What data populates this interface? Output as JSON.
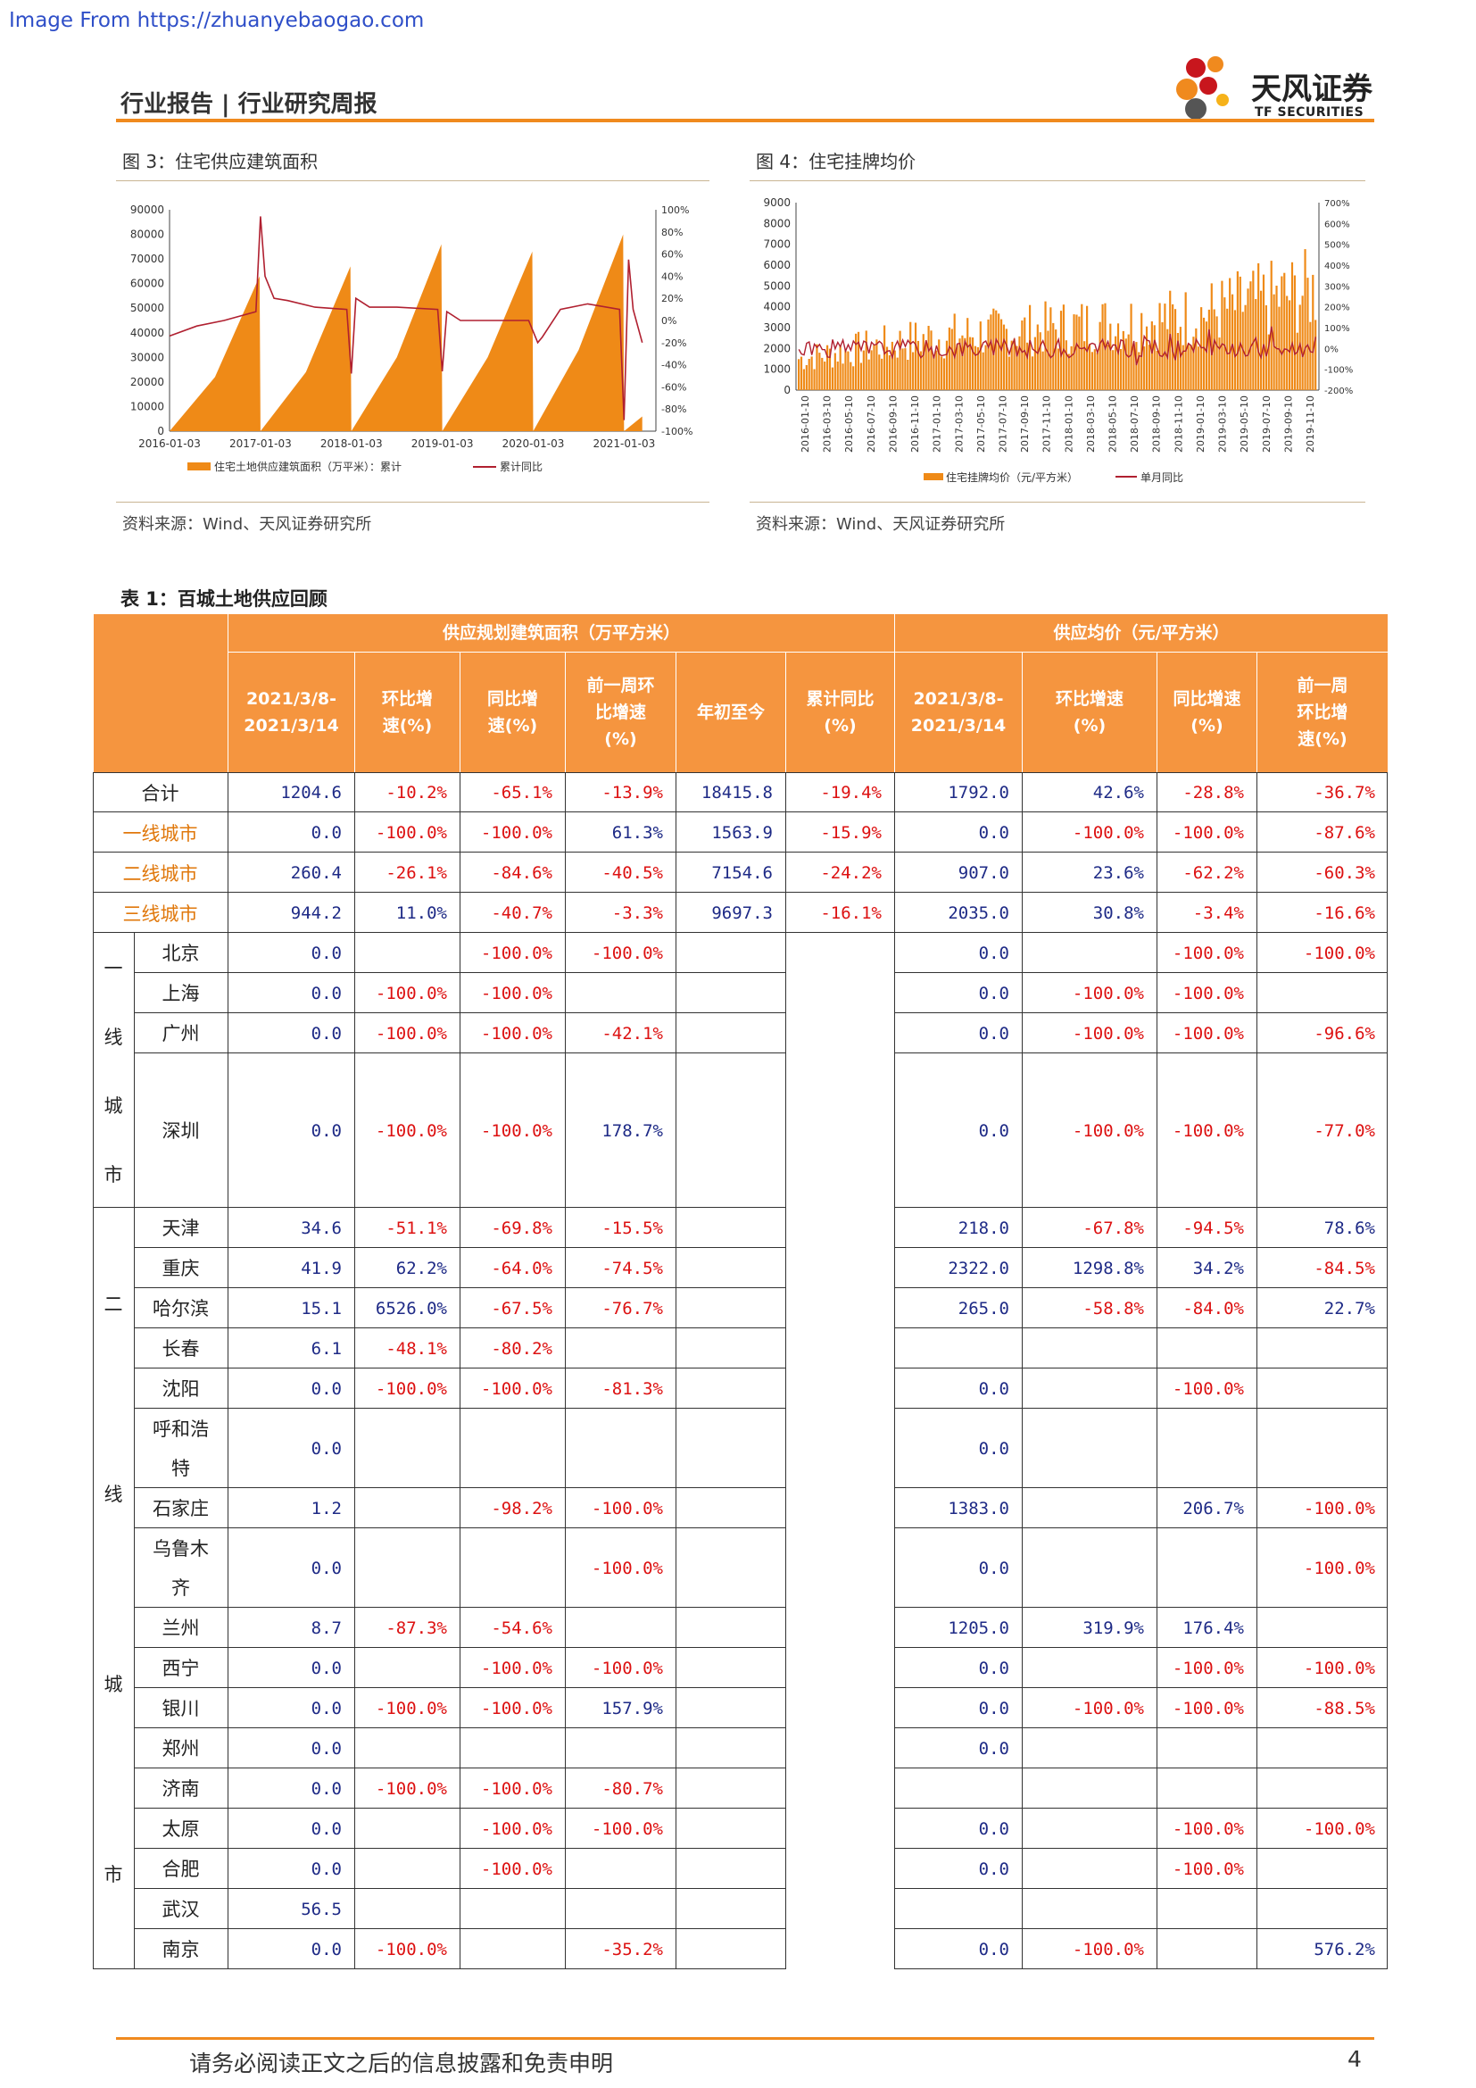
{
  "watermark": "Image From https://zhuanyebaogao.com",
  "header": {
    "title": "行业报告 | 行业研究周报",
    "logo_name": "天风证券",
    "logo_sub": "TF SECURITIES"
  },
  "figure3": {
    "title": "图 3：住宅供应建筑面积",
    "source": "资料来源：Wind、天风证券研究所",
    "chart_data": {
      "type": "area",
      "x_ticks": [
        "2016-01-03",
        "2017-01-03",
        "2018-01-03",
        "2019-01-03",
        "2020-01-03",
        "2021-01-03"
      ],
      "y_left_ticks": [
        "0",
        "10000",
        "20000",
        "30000",
        "40000",
        "50000",
        "60000",
        "70000",
        "80000",
        "90000"
      ],
      "y_right_ticks": [
        "-100%",
        "-80%",
        "-60%",
        "-40%",
        "-20%",
        "0%",
        "20%",
        "40%",
        "60%",
        "80%",
        "100%"
      ],
      "ylim_left": [
        0,
        90000
      ],
      "ylim_right": [
        -100,
        100
      ],
      "series": [
        {
          "name": "住宅土地供应建筑面积（万平米）：累计",
          "kind": "area",
          "color": "#ef8a17",
          "x": [
            2016.0,
            2016.5,
            2016.99,
            2017.0,
            2017.5,
            2017.99,
            2018.0,
            2018.5,
            2018.99,
            2019.0,
            2019.5,
            2019.99,
            2020.0,
            2020.5,
            2020.99,
            2021.0,
            2021.2
          ],
          "values": [
            0,
            22000,
            63000,
            0,
            24000,
            67000,
            0,
            30000,
            76000,
            0,
            30000,
            73000,
            0,
            33000,
            80000,
            0,
            6000
          ]
        },
        {
          "name": "累计同比",
          "kind": "line",
          "color": "#b02030",
          "x": [
            2016.0,
            2016.3,
            2016.6,
            2016.95,
            2017.0,
            2017.05,
            2017.15,
            2017.3,
            2017.6,
            2017.95,
            2018.0,
            2018.05,
            2018.2,
            2018.5,
            2018.95,
            2019.0,
            2019.05,
            2019.2,
            2019.5,
            2019.95,
            2020.0,
            2020.05,
            2020.1,
            2020.3,
            2020.6,
            2020.95,
            2021.0,
            2021.05,
            2021.1,
            2021.2
          ],
          "values": [
            -14,
            -5,
            0,
            8,
            94,
            40,
            20,
            18,
            12,
            10,
            -48,
            20,
            12,
            12,
            10,
            -46,
            8,
            0,
            0,
            0,
            -10,
            -20,
            -15,
            10,
            15,
            10,
            -90,
            55,
            10,
            -20
          ]
        }
      ]
    }
  },
  "figure4": {
    "title": "图 4：住宅挂牌均价",
    "source": "资料来源：Wind、天风证券研究所",
    "chart_data": {
      "type": "bar",
      "x_ticks": [
        "2016-01-10",
        "2016-03-10",
        "2016-05-10",
        "2016-07-10",
        "2016-09-10",
        "2016-11-10",
        "2017-01-10",
        "2017-03-10",
        "2017-05-10",
        "2017-07-10",
        "2017-09-10",
        "2017-11-10",
        "2018-01-10",
        "2018-03-10",
        "2018-05-10",
        "2018-07-10",
        "2018-09-10",
        "2018-11-10",
        "2019-01-10",
        "2019-03-10",
        "2019-05-10",
        "2019-07-10",
        "2019-09-10",
        "2019-11-10"
      ],
      "y_left_ticks": [
        "0",
        "1000",
        "2000",
        "3000",
        "4000",
        "5000",
        "6000",
        "7000",
        "8000",
        "9000"
      ],
      "y_right_ticks": [
        "-200%",
        "-100%",
        "0%",
        "100%",
        "200%",
        "300%",
        "400%",
        "500%",
        "600%",
        "700%"
      ],
      "ylim_left": [
        0,
        9000
      ],
      "ylim_right": [
        -200,
        700
      ],
      "series": [
        {
          "name": "住宅挂牌均价（元/平方米）",
          "kind": "bar",
          "color": "#ef8a17",
          "x_range": [
            2016.0,
            2019.9
          ],
          "values_trend": [
            1500,
            2500,
            3000,
            3500,
            4800
          ]
        },
        {
          "name": "单月同比",
          "kind": "line",
          "color": "#b02030",
          "baseline": 0
        }
      ]
    }
  },
  "table": {
    "title": "表 1：百城土地供应回顾",
    "group1": "供应规划建筑面积（万平方米）",
    "group2": "供应均价（元/平方米）",
    "columns": [
      [
        "2021/3/8-",
        "2021/3/14"
      ],
      [
        "环比增",
        "速(%)"
      ],
      [
        "同比增",
        "速(%)"
      ],
      [
        "前一周环",
        "比增速",
        "(%)"
      ],
      [
        "年初至今"
      ],
      [
        "累计同比",
        "(%)"
      ],
      [
        "2021/3/8-",
        "2021/3/14"
      ],
      [
        "环比增速",
        "(%)"
      ],
      [
        "同比增速",
        "(%)"
      ],
      [
        "前一周",
        "环比增",
        "速(%)"
      ]
    ],
    "summary_rows": [
      {
        "label": "合计",
        "cells": [
          "1204.6",
          "-10.2%",
          "-65.1%",
          "-13.9%",
          "18415.8",
          "-19.4%",
          "1792.0",
          "42.6%",
          "-28.8%",
          "-36.7%"
        ]
      },
      {
        "label": "一线城市",
        "cells": [
          "0.0",
          "-100.0%",
          "-100.0%",
          "61.3%",
          "1563.9",
          "-15.9%",
          "0.0",
          "-100.0%",
          "-100.0%",
          "-87.6%"
        ]
      },
      {
        "label": "二线城市",
        "cells": [
          "260.4",
          "-26.1%",
          "-84.6%",
          "-40.5%",
          "7154.6",
          "-24.2%",
          "907.0",
          "23.6%",
          "-62.2%",
          "-60.3%"
        ]
      },
      {
        "label": "三线城市",
        "cells": [
          "944.2",
          "11.0%",
          "-40.7%",
          "-3.3%",
          "9697.3",
          "-16.1%",
          "2035.0",
          "30.8%",
          "-3.4%",
          "-16.6%"
        ]
      }
    ],
    "groups": [
      {
        "label_chars": [
          "一",
          "线",
          "城",
          "市"
        ],
        "rows": [
          {
            "city": "北京",
            "cells": [
              "0.0",
              "",
              "-100.0%",
              "-100.0%",
              "",
              "",
              "0.0",
              "",
              "-100.0%",
              "-100.0%"
            ]
          },
          {
            "city": "上海",
            "cells": [
              "0.0",
              "-100.0%",
              "-100.0%",
              "",
              "",
              "",
              "0.0",
              "-100.0%",
              "-100.0%",
              ""
            ]
          },
          {
            "city": "广州",
            "cells": [
              "0.0",
              "-100.0%",
              "-100.0%",
              "-42.1%",
              "",
              "",
              "0.0",
              "-100.0%",
              "-100.0%",
              "-96.6%"
            ]
          },
          {
            "city": "深圳",
            "cells": [
              "0.0",
              "-100.0%",
              "-100.0%",
              "178.7%",
              "",
              "",
              "0.0",
              "-100.0%",
              "-100.0%",
              "-77.0%"
            ]
          }
        ]
      },
      {
        "label_chars": [
          "二",
          "线",
          "城",
          "市"
        ],
        "rows": [
          {
            "city": "天津",
            "cells": [
              "34.6",
              "-51.1%",
              "-69.8%",
              "-15.5%",
              "",
              "",
              "218.0",
              "-67.8%",
              "-94.5%",
              "78.6%"
            ]
          },
          {
            "city": "重庆",
            "cells": [
              "41.9",
              "62.2%",
              "-64.0%",
              "-74.5%",
              "",
              "",
              "2322.0",
              "1298.8%",
              "34.2%",
              "-84.5%"
            ]
          },
          {
            "city": "哈尔滨",
            "cells": [
              "15.1",
              "6526.0%",
              "-67.5%",
              "-76.7%",
              "",
              "",
              "265.0",
              "-58.8%",
              "-84.0%",
              "22.7%"
            ]
          },
          {
            "city": "长春",
            "cells": [
              "6.1",
              "-48.1%",
              "-80.2%",
              "",
              "",
              "",
              "",
              "",
              "",
              ""
            ]
          },
          {
            "city": "沈阳",
            "cells": [
              "0.0",
              "-100.0%",
              "-100.0%",
              "-81.3%",
              "",
              "",
              "0.0",
              "",
              "-100.0%",
              ""
            ]
          },
          {
            "city": "呼和浩特",
            "cells": [
              "0.0",
              "",
              "",
              "",
              "",
              "",
              "0.0",
              "",
              "",
              ""
            ]
          },
          {
            "city": "石家庄",
            "cells": [
              "1.2",
              "",
              "-98.2%",
              "-100.0%",
              "",
              "",
              "1383.0",
              "",
              "206.7%",
              "-100.0%"
            ]
          },
          {
            "city": "乌鲁木齐",
            "cells": [
              "0.0",
              "",
              "",
              "-100.0%",
              "",
              "",
              "0.0",
              "",
              "",
              "-100.0%"
            ]
          },
          {
            "city": "兰州",
            "cells": [
              "8.7",
              "-87.3%",
              "-54.6%",
              "",
              "",
              "",
              "1205.0",
              "319.9%",
              "176.4%",
              ""
            ]
          },
          {
            "city": "西宁",
            "cells": [
              "0.0",
              "",
              "-100.0%",
              "-100.0%",
              "",
              "",
              "0.0",
              "",
              "-100.0%",
              "-100.0%"
            ]
          },
          {
            "city": "银川",
            "cells": [
              "0.0",
              "-100.0%",
              "-100.0%",
              "157.9%",
              "",
              "",
              "0.0",
              "-100.0%",
              "-100.0%",
              "-88.5%"
            ]
          },
          {
            "city": "郑州",
            "cells": [
              "0.0",
              "",
              "",
              "",
              "",
              "",
              "0.0",
              "",
              "",
              ""
            ]
          },
          {
            "city": "济南",
            "cells": [
              "0.0",
              "-100.0%",
              "-100.0%",
              "-80.7%",
              "",
              "",
              "",
              "",
              "",
              ""
            ]
          },
          {
            "city": "太原",
            "cells": [
              "0.0",
              "",
              "-100.0%",
              "-100.0%",
              "",
              "",
              "0.0",
              "",
              "-100.0%",
              "-100.0%"
            ]
          },
          {
            "city": "合肥",
            "cells": [
              "0.0",
              "",
              "-100.0%",
              "",
              "",
              "",
              "0.0",
              "",
              "-100.0%",
              ""
            ]
          },
          {
            "city": "武汉",
            "cells": [
              "56.5",
              "",
              "",
              "",
              "",
              "",
              "",
              "",
              "",
              ""
            ]
          },
          {
            "city": "南京",
            "cells": [
              "0.0",
              "-100.0%",
              "",
              "-35.2%",
              "",
              "",
              "0.0",
              "-100.0%",
              "",
              "576.2%"
            ]
          }
        ]
      }
    ]
  },
  "footer": {
    "disclaimer": "请务必阅读正文之后的信息披露和免责申明",
    "page": "4"
  }
}
